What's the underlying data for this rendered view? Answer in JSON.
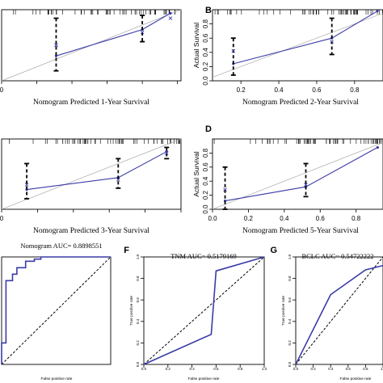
{
  "chart_data": [
    {
      "id": "A",
      "type": "line",
      "panel_label": "",
      "xlabel": "Nomogram Predicted 1-Year Survival",
      "ylabel": "",
      "xlim": [
        0.0,
        1.02
      ],
      "ylim": [
        0.0,
        1.0
      ],
      "xticks": [
        "0",
        "",
        "",
        "",
        "",
        ""
      ],
      "xtick_values": [
        0.0,
        0.2,
        0.4,
        0.6,
        0.8,
        1.0
      ],
      "yticks": [],
      "ytick_values": [],
      "series": [
        {
          "name": "",
          "x": [
            0.31,
            0.8,
            0.96
          ],
          "y": [
            0.35,
            0.72,
            0.95
          ]
        }
      ],
      "error_bars": [
        {
          "x": 0.31,
          "lo": 0.14,
          "hi": 0.88,
          "mid": 0.35
        },
        {
          "x": 0.8,
          "lo": 0.55,
          "hi": 0.92,
          "mid": 0.72
        }
      ],
      "ideal_points": [
        [
          0.31,
          0.5
        ],
        [
          0.8,
          0.68
        ],
        [
          0.96,
          0.88
        ]
      ],
      "rug_max": 1.0
    },
    {
      "id": "B",
      "type": "line",
      "panel_label": "B",
      "xlabel": "Nomogram Predicted 2-Year Survival",
      "ylabel": "Actual Survival",
      "xlim": [
        0.05,
        0.95
      ],
      "ylim": [
        0.0,
        1.0
      ],
      "xticks": [
        "0.2",
        "0.4",
        "0.6",
        "0.8"
      ],
      "xtick_values": [
        0.2,
        0.4,
        0.6,
        0.8
      ],
      "yticks": [
        "0.0",
        "0.2",
        "0.4",
        "0.6",
        "0.8"
      ],
      "ytick_values": [
        0.0,
        0.2,
        0.4,
        0.6,
        0.8
      ],
      "series": [
        {
          "name": "",
          "x": [
            0.16,
            0.68,
            0.92
          ],
          "y": [
            0.24,
            0.6,
            0.98
          ]
        }
      ],
      "error_bars": [
        {
          "x": 0.16,
          "lo": 0.08,
          "hi": 0.6,
          "mid": 0.24
        },
        {
          "x": 0.68,
          "lo": 0.37,
          "hi": 0.88,
          "mid": 0.6
        }
      ],
      "ideal_points": [
        [
          0.16,
          0.42
        ],
        [
          0.68,
          0.55
        ]
      ],
      "rug_max": 1.0
    },
    {
      "id": "C",
      "type": "line",
      "panel_label": "",
      "xlabel": "Nomogram Predicted 3-Year Survival",
      "ylabel": "",
      "xlim": [
        0.0,
        1.0
      ],
      "ylim": [
        0.0,
        1.0
      ],
      "xticks": [
        "0",
        "",
        "",
        "",
        "",
        ""
      ],
      "xtick_values": [
        0.0,
        0.2,
        0.4,
        0.6,
        0.8,
        1.0
      ],
      "yticks": [],
      "ytick_values": [],
      "series": [
        {
          "name": "",
          "x": [
            0.14,
            0.65,
            0.92
          ],
          "y": [
            0.28,
            0.45,
            0.82
          ]
        }
      ],
      "error_bars": [
        {
          "x": 0.14,
          "lo": 0.15,
          "hi": 0.65,
          "mid": 0.28
        },
        {
          "x": 0.65,
          "lo": 0.3,
          "hi": 0.72,
          "mid": 0.45
        },
        {
          "x": 0.92,
          "lo": 0.72,
          "hi": 0.88,
          "mid": 0.82
        }
      ],
      "ideal_points": [
        [
          0.14,
          0.35
        ],
        [
          0.65,
          0.42
        ],
        [
          0.92,
          0.8
        ]
      ],
      "rug_max": 1.0
    },
    {
      "id": "D",
      "type": "line",
      "panel_label": "D",
      "xlabel": "Nomogram Predicted 5-Year Survival",
      "ylabel": "Actual Survival",
      "xlim": [
        0.0,
        0.95
      ],
      "ylim": [
        0.0,
        1.0
      ],
      "xticks": [
        "0.0",
        "0.2",
        "0.4",
        "0.6",
        "0.8"
      ],
      "xtick_values": [
        0.0,
        0.2,
        0.4,
        0.6,
        0.8
      ],
      "yticks": [
        "0.0",
        "0.2",
        "0.4",
        "0.6",
        "0.8"
      ],
      "ytick_values": [
        0.0,
        0.2,
        0.4,
        0.6,
        0.8
      ],
      "series": [
        {
          "name": "",
          "x": [
            0.07,
            0.52,
            0.92
          ],
          "y": [
            0.12,
            0.32,
            0.88
          ]
        }
      ],
      "error_bars": [
        {
          "x": 0.07,
          "lo": 0.0,
          "hi": 0.6,
          "mid": 0.12
        },
        {
          "x": 0.52,
          "lo": 0.18,
          "hi": 0.65,
          "mid": 0.32
        }
      ],
      "ideal_points": [
        [
          0.07,
          0.28
        ],
        [
          0.52,
          0.35
        ]
      ],
      "rug_max": 0.95
    },
    {
      "id": "E",
      "type": "line",
      "panel_label": "",
      "title": "Nomogram AUC= 0.8898551",
      "xlabel": "False positive rate",
      "ylabel": "",
      "xlim": [
        0.0,
        1.0
      ],
      "ylim": [
        0.0,
        1.0
      ],
      "series": [
        {
          "name": "",
          "x": [
            0.0,
            0.0,
            0.04,
            0.04,
            0.1,
            0.1,
            0.14,
            0.14,
            0.22,
            0.22,
            0.3,
            0.3,
            0.36,
            0.36,
            1.0
          ],
          "y": [
            0.0,
            0.2,
            0.2,
            0.78,
            0.78,
            0.84,
            0.84,
            0.9,
            0.9,
            0.96,
            0.96,
            0.98,
            0.98,
            1.0,
            1.0
          ]
        }
      ]
    },
    {
      "id": "F",
      "type": "line",
      "panel_label": "F",
      "title": "TNM AUC= 0.5179169",
      "xlabel": "False positive rate",
      "ylabel": "True positive rate",
      "xlim": [
        0.0,
        1.0
      ],
      "ylim": [
        0.0,
        1.0
      ],
      "xticks": [
        "0.0",
        "0.2",
        "0.4",
        "0.6",
        "0.8",
        "1.0"
      ],
      "xtick_values": [
        0.0,
        0.2,
        0.4,
        0.6,
        0.8,
        1.0
      ],
      "yticks": [
        "0.0",
        "0.2",
        "0.4",
        "0.6",
        "0.8",
        "1.0"
      ],
      "ytick_values": [
        0.0,
        0.2,
        0.4,
        0.6,
        0.8,
        1.0
      ],
      "series": [
        {
          "name": "",
          "x": [
            0.0,
            0.56,
            0.6,
            1.0
          ],
          "y": [
            0.0,
            0.28,
            0.87,
            1.0
          ]
        }
      ]
    },
    {
      "id": "G",
      "type": "line",
      "panel_label": "G",
      "title": "BCLC AUC= 0.54722222",
      "xlabel": "False positive rate",
      "ylabel": "True positive rate",
      "xlim": [
        0.0,
        1.0
      ],
      "ylim": [
        0.0,
        1.0
      ],
      "xticks": [
        "0.0",
        "0.2",
        "0.4",
        "0.6",
        "0.8",
        "1.0"
      ],
      "xtick_values": [
        0.0,
        0.2,
        0.4,
        0.6,
        0.8,
        1.0
      ],
      "yticks": [
        "0.0",
        "0.2",
        "0.4",
        "0.6",
        "0.8",
        "1.0"
      ],
      "ytick_values": [
        0.0,
        0.2,
        0.4,
        0.6,
        0.8,
        1.0
      ],
      "series": [
        {
          "name": "",
          "x": [
            0.0,
            0.4,
            0.8,
            1.0
          ],
          "y": [
            0.0,
            0.65,
            0.88,
            0.92
          ]
        }
      ]
    }
  ],
  "colors": {
    "series": "#3b3ba8",
    "diagonal": "#aaaaaa",
    "error": "#000000",
    "roc_ref": "#000000"
  }
}
